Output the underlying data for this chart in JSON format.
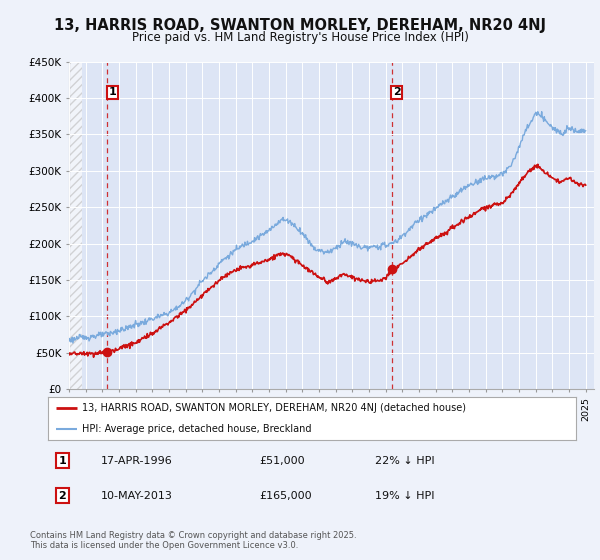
{
  "title_line1": "13, HARRIS ROAD, SWANTON MORLEY, DEREHAM, NR20 4NJ",
  "title_line2": "Price paid vs. HM Land Registry's House Price Index (HPI)",
  "background_color": "#eef2fa",
  "plot_bg_color": "#dde5f5",
  "grid_color": "#ffffff",
  "hpi_color": "#7aaadd",
  "price_color": "#cc1111",
  "ylim": [
    0,
    450000
  ],
  "yticks": [
    0,
    50000,
    100000,
    150000,
    200000,
    250000,
    300000,
    350000,
    400000,
    450000
  ],
  "ytick_labels": [
    "£0",
    "£50K",
    "£100K",
    "£150K",
    "£200K",
    "£250K",
    "£300K",
    "£350K",
    "£400K",
    "£450K"
  ],
  "sale1_year": 1996.29,
  "sale1_price": 51000,
  "sale1_label": "17-APR-1996",
  "sale1_pct": "22% ↓ HPI",
  "sale2_year": 2013.36,
  "sale2_price": 165000,
  "sale2_label": "10-MAY-2013",
  "sale2_pct": "19% ↓ HPI",
  "legend_line1": "13, HARRIS ROAD, SWANTON MORLEY, DEREHAM, NR20 4NJ (detached house)",
  "legend_line2": "HPI: Average price, detached house, Breckland",
  "footnote": "Contains HM Land Registry data © Crown copyright and database right 2025.\nThis data is licensed under the Open Government Licence v3.0.",
  "xstart": 1994,
  "xend": 2025.5
}
